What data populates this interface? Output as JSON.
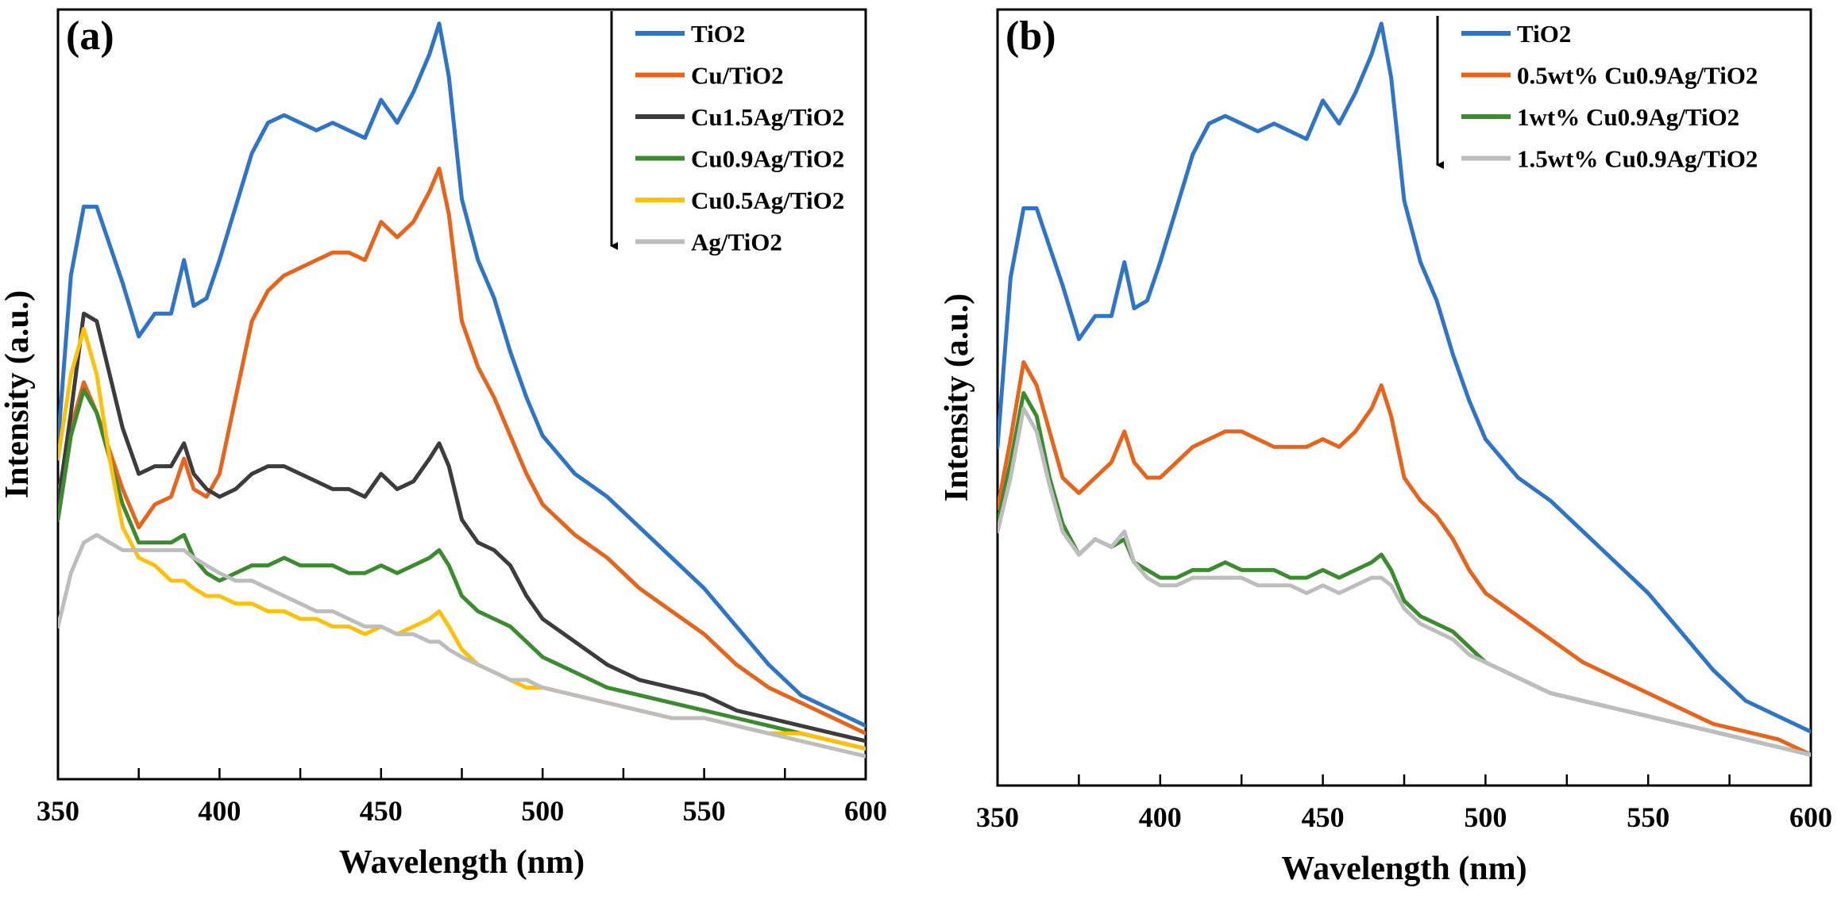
{
  "chart_data": [
    {
      "type": "line",
      "panel_label": "(a)",
      "xlabel": "Wavelength (nm)",
      "ylabel": "Intensity (a.u.)",
      "xlim": [
        350,
        600
      ],
      "ylim": [
        0,
        100
      ],
      "xticks": [
        "350",
        "400",
        "450",
        "500",
        "550",
        "600"
      ],
      "legend_position": "top-right",
      "colors": {
        "blue": "#2e75c8",
        "orange": "#e8641b",
        "dark": "#3c3c3c",
        "green": "#3a8c2f",
        "yellow": "#ffc107",
        "gray": "#bdbdbd"
      },
      "series": [
        {
          "name": "TiO2",
          "color": "#2e75c8",
          "x": [
            350,
            354,
            358,
            362,
            366,
            370,
            375,
            380,
            385,
            389,
            392,
            396,
            400,
            405,
            410,
            415,
            420,
            425,
            430,
            435,
            440,
            445,
            450,
            455,
            460,
            465,
            468,
            471,
            475,
            480,
            485,
            490,
            495,
            500,
            510,
            520,
            530,
            540,
            550,
            560,
            570,
            580,
            590,
            600
          ],
          "y": [
            44,
            66,
            75,
            75,
            70,
            65,
            58,
            61,
            61,
            68,
            62,
            63,
            68,
            75,
            82,
            86,
            87,
            86,
            85,
            86,
            85,
            84,
            89,
            86,
            90,
            95,
            99,
            92,
            76,
            68,
            63,
            56,
            50,
            45,
            40,
            37,
            33,
            29,
            25,
            20,
            15,
            11,
            9,
            7
          ]
        },
        {
          "name": "Cu/TiO2",
          "color": "#e8641b",
          "x": [
            350,
            354,
            358,
            362,
            366,
            370,
            375,
            380,
            385,
            389,
            392,
            396,
            400,
            405,
            410,
            415,
            420,
            425,
            430,
            435,
            440,
            445,
            450,
            455,
            460,
            465,
            468,
            471,
            475,
            480,
            485,
            490,
            495,
            500,
            510,
            520,
            530,
            540,
            550,
            560,
            570,
            580,
            590,
            600
          ],
          "y": [
            37,
            46,
            52,
            48,
            43,
            38,
            33,
            36,
            37,
            42,
            38,
            37,
            40,
            50,
            60,
            64,
            66,
            67,
            68,
            69,
            69,
            68,
            73,
            71,
            73,
            77,
            80,
            74,
            60,
            54,
            50,
            45,
            40,
            36,
            32,
            29,
            25,
            22,
            19,
            15,
            12,
            10,
            8,
            6
          ]
        },
        {
          "name": "Cu1.5Ag/TiO2",
          "color": "#3c3c3c",
          "x": [
            350,
            354,
            358,
            362,
            366,
            370,
            375,
            380,
            385,
            389,
            392,
            396,
            400,
            405,
            410,
            415,
            420,
            425,
            430,
            435,
            440,
            445,
            450,
            455,
            460,
            465,
            468,
            471,
            475,
            480,
            485,
            490,
            495,
            500,
            510,
            520,
            530,
            540,
            550,
            560,
            570,
            580,
            590,
            600
          ],
          "y": [
            36,
            48,
            61,
            60,
            53,
            46,
            40,
            41,
            41,
            44,
            40,
            38,
            37,
            38,
            40,
            41,
            41,
            40,
            39,
            38,
            38,
            37,
            40,
            38,
            39,
            42,
            44,
            41,
            34,
            31,
            30,
            28,
            24,
            21,
            18,
            15,
            13,
            12,
            11,
            9,
            8,
            7,
            6,
            5
          ]
        },
        {
          "name": "Cu0.9Ag/TiO2",
          "color": "#3a8c2f",
          "x": [
            350,
            354,
            358,
            362,
            366,
            370,
            375,
            380,
            385,
            389,
            392,
            396,
            400,
            405,
            410,
            415,
            420,
            425,
            430,
            435,
            440,
            445,
            450,
            455,
            460,
            465,
            468,
            471,
            475,
            480,
            485,
            490,
            495,
            500,
            510,
            520,
            530,
            540,
            550,
            560,
            570,
            580,
            590,
            600
          ],
          "y": [
            34,
            45,
            51,
            48,
            42,
            36,
            31,
            31,
            31,
            32,
            29,
            27,
            26,
            27,
            28,
            28,
            29,
            28,
            28,
            28,
            27,
            27,
            28,
            27,
            28,
            29,
            30,
            28,
            24,
            22,
            21,
            20,
            18,
            16,
            14,
            12,
            11,
            10,
            9,
            8,
            7,
            6,
            5,
            4
          ]
        },
        {
          "name": "Cu0.5Ag/TiO2",
          "color": "#ffc107",
          "x": [
            350,
            354,
            358,
            362,
            366,
            370,
            375,
            380,
            385,
            389,
            392,
            396,
            400,
            405,
            410,
            415,
            420,
            425,
            430,
            435,
            440,
            445,
            450,
            455,
            460,
            465,
            468,
            471,
            475,
            480,
            485,
            490,
            495,
            500,
            510,
            520,
            530,
            540,
            550,
            560,
            570,
            580,
            590,
            600
          ],
          "y": [
            42,
            53,
            59,
            53,
            42,
            33,
            29,
            28,
            26,
            26,
            25,
            24,
            24,
            23,
            23,
            22,
            22,
            21,
            21,
            20,
            20,
            19,
            20,
            19,
            20,
            21,
            22,
            20,
            17,
            15,
            14,
            13,
            12,
            12,
            11,
            10,
            9,
            8,
            8,
            7,
            6,
            6,
            5,
            4
          ]
        },
        {
          "name": "Ag/TiO2",
          "color": "#bdbdbd",
          "x": [
            350,
            354,
            358,
            362,
            366,
            370,
            375,
            380,
            385,
            389,
            392,
            396,
            400,
            405,
            410,
            415,
            420,
            425,
            430,
            435,
            440,
            445,
            450,
            455,
            460,
            465,
            468,
            471,
            475,
            480,
            485,
            490,
            495,
            500,
            510,
            520,
            530,
            540,
            550,
            560,
            570,
            580,
            590,
            600
          ],
          "y": [
            20,
            27,
            31,
            32,
            31,
            30,
            30,
            30,
            30,
            30,
            29,
            28,
            27,
            26,
            26,
            25,
            24,
            23,
            22,
            22,
            21,
            20,
            20,
            19,
            19,
            18,
            18,
            17,
            16,
            15,
            14,
            13,
            13,
            12,
            11,
            10,
            9,
            8,
            8,
            7,
            6,
            5,
            4,
            3
          ]
        }
      ]
    },
    {
      "type": "line",
      "panel_label": "(b)",
      "xlabel": "Wavelength (nm)",
      "ylabel": "Intensity (a.u.)",
      "xlim": [
        350,
        600
      ],
      "ylim": [
        0,
        100
      ],
      "xticks": [
        "350",
        "400",
        "450",
        "500",
        "550",
        "600"
      ],
      "legend_position": "top-right",
      "series": [
        {
          "name": "TiO2",
          "color": "#2e75c8",
          "x": [
            350,
            354,
            358,
            362,
            366,
            370,
            375,
            380,
            385,
            389,
            392,
            396,
            400,
            405,
            410,
            415,
            420,
            425,
            430,
            435,
            440,
            445,
            450,
            455,
            460,
            465,
            468,
            471,
            475,
            480,
            485,
            490,
            495,
            500,
            510,
            520,
            530,
            540,
            550,
            560,
            570,
            580,
            590,
            600
          ],
          "y": [
            44,
            66,
            75,
            75,
            70,
            65,
            58,
            61,
            61,
            68,
            62,
            63,
            68,
            75,
            82,
            86,
            87,
            86,
            85,
            86,
            85,
            84,
            89,
            86,
            90,
            95,
            99,
            92,
            76,
            68,
            63,
            56,
            50,
            45,
            40,
            37,
            33,
            29,
            25,
            20,
            15,
            11,
            9,
            7
          ]
        },
        {
          "name": "0.5wt%  Cu0.9Ag/TiO2",
          "color": "#e8641b",
          "x": [
            350,
            354,
            358,
            362,
            366,
            370,
            375,
            380,
            385,
            389,
            392,
            396,
            400,
            405,
            410,
            415,
            420,
            425,
            430,
            435,
            440,
            445,
            450,
            455,
            460,
            465,
            468,
            471,
            475,
            480,
            485,
            490,
            495,
            500,
            510,
            520,
            530,
            540,
            550,
            560,
            570,
            580,
            590,
            600
          ],
          "y": [
            36,
            45,
            55,
            52,
            46,
            40,
            38,
            40,
            42,
            46,
            42,
            40,
            40,
            42,
            44,
            45,
            46,
            46,
            45,
            44,
            44,
            44,
            45,
            44,
            46,
            49,
            52,
            48,
            40,
            37,
            35,
            32,
            28,
            25,
            22,
            19,
            16,
            14,
            12,
            10,
            8,
            7,
            6,
            4
          ]
        },
        {
          "name": "1wt%     Cu0.9Ag/TiO2",
          "color": "#3a8c2f",
          "x": [
            350,
            354,
            358,
            362,
            366,
            370,
            375,
            380,
            385,
            389,
            392,
            396,
            400,
            405,
            410,
            415,
            420,
            425,
            430,
            435,
            440,
            445,
            450,
            455,
            460,
            465,
            468,
            471,
            475,
            480,
            485,
            490,
            495,
            500,
            510,
            520,
            530,
            540,
            550,
            560,
            570,
            580,
            590,
            600
          ],
          "y": [
            34,
            42,
            51,
            48,
            40,
            34,
            30,
            32,
            31,
            32,
            29,
            28,
            27,
            27,
            28,
            28,
            29,
            28,
            28,
            28,
            27,
            27,
            28,
            27,
            28,
            29,
            30,
            28,
            24,
            22,
            21,
            20,
            18,
            16,
            14,
            12,
            11,
            10,
            9,
            8,
            7,
            6,
            5,
            4
          ]
        },
        {
          "name": "1.5wt%  Cu0.9Ag/TiO2",
          "color": "#bdbdbd",
          "x": [
            350,
            354,
            358,
            362,
            366,
            370,
            375,
            380,
            385,
            389,
            392,
            396,
            400,
            405,
            410,
            415,
            420,
            425,
            430,
            435,
            440,
            445,
            450,
            455,
            460,
            465,
            468,
            471,
            475,
            480,
            485,
            490,
            495,
            500,
            510,
            520,
            530,
            540,
            550,
            560,
            570,
            580,
            590,
            600
          ],
          "y": [
            33,
            40,
            49,
            46,
            39,
            33,
            30,
            32,
            31,
            33,
            29,
            27,
            26,
            26,
            27,
            27,
            27,
            27,
            26,
            26,
            26,
            25,
            26,
            25,
            26,
            27,
            27,
            26,
            23,
            21,
            20,
            19,
            17,
            16,
            14,
            12,
            11,
            10,
            9,
            8,
            7,
            6,
            5,
            4
          ]
        }
      ]
    }
  ]
}
